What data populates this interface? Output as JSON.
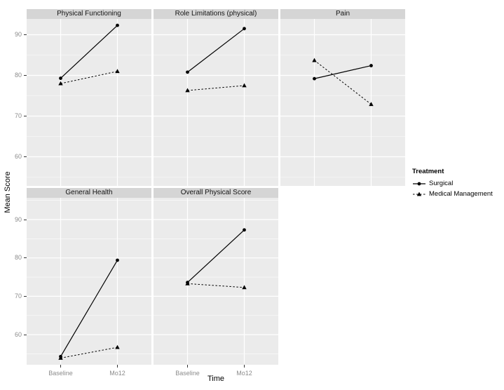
{
  "chart_data": {
    "type": "line",
    "description": "Faceted interaction plot of mean scores by treatment group over time",
    "xlabel": "Time",
    "ylabel": "Mean Score",
    "categories": [
      "Baseline",
      "Mo12"
    ],
    "y_ticks": [
      "90",
      "80",
      "70",
      "60"
    ],
    "y_tick_values": [
      90,
      80,
      70,
      60
    ],
    "ylim_top_row": [
      52.8,
      93.9
    ],
    "ylim_bottom_row": [
      52.0,
      95.7
    ],
    "grid": "major-and-minor-white-on-gray",
    "legend": {
      "title": "Treatment",
      "position": "right",
      "entries": [
        {
          "name": "Surgical",
          "line": "solid",
          "marker": "circle"
        },
        {
          "name": "Medical Management",
          "line": "dashed",
          "marker": "triangle"
        }
      ]
    },
    "panels": [
      {
        "title": "Physical Functioning",
        "series": [
          {
            "name": "Surgical",
            "values": [
              79.3,
              92.3
            ]
          },
          {
            "name": "Medical Management",
            "values": [
              78.0,
              81.0
            ]
          }
        ]
      },
      {
        "title": "Role Limitations (physical)",
        "series": [
          {
            "name": "Surgical",
            "values": [
              80.8,
              91.5
            ]
          },
          {
            "name": "Medical Management",
            "values": [
              76.3,
              77.5
            ]
          }
        ]
      },
      {
        "title": "Pain",
        "series": [
          {
            "name": "Surgical",
            "values": [
              79.2,
              82.4
            ]
          },
          {
            "name": "Medical Management",
            "values": [
              83.7,
              72.9
            ]
          }
        ]
      },
      {
        "title": "General Health",
        "series": [
          {
            "name": "Surgical",
            "values": [
              54.3,
              79.4
            ]
          },
          {
            "name": "Medical Management",
            "values": [
              53.9,
              56.7
            ]
          }
        ]
      },
      {
        "title": "Overall Physical Score",
        "series": [
          {
            "name": "Surgical",
            "values": [
              73.6,
              87.3
            ]
          },
          {
            "name": "Medical Management",
            "values": [
              73.3,
              72.3
            ]
          }
        ]
      }
    ],
    "colors": {
      "background": "#ffffff",
      "panel_bg": "#ebebeb",
      "strip_bg": "#d5d5d5",
      "gridline": "#ffffff",
      "series_ink": "#000000",
      "axis_text": "#8c8c8c"
    }
  }
}
